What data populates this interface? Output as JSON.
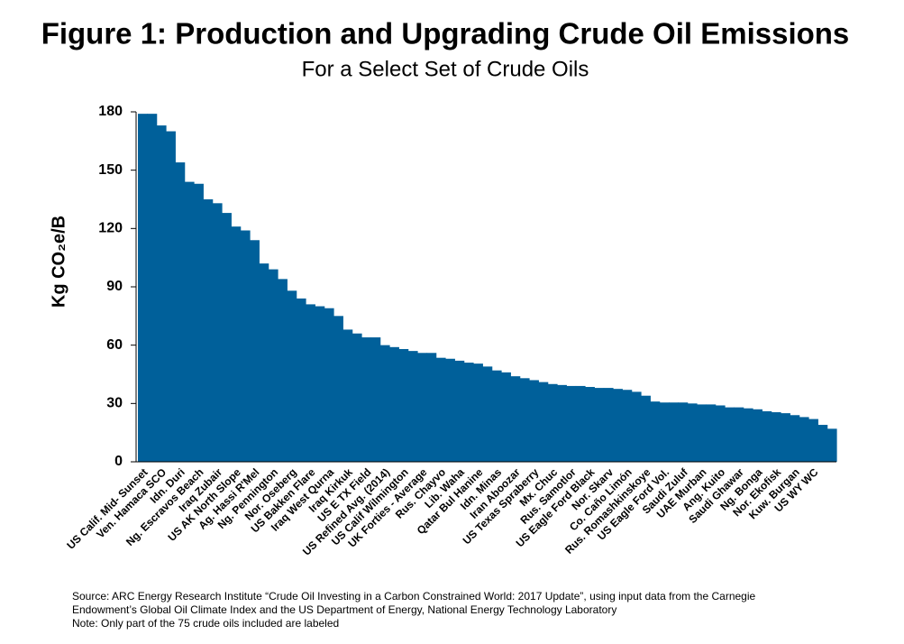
{
  "chart_data": {
    "type": "bar",
    "title": "Figure 1: Production and Upgrading Crude Oil Emissions",
    "subtitle": "For a Select Set of Crude Oils",
    "y_label": "Kg CO₂e/B",
    "color": "#00609a",
    "ylim": [
      0,
      180
    ],
    "yticks": [
      0,
      30,
      60,
      90,
      120,
      150,
      180
    ],
    "categories": [
      "US Calif. Mid- Sunset",
      null,
      "Ven. Hamaca SCO",
      null,
      "Idn. Duri",
      null,
      "Ng. Escravos Beach",
      null,
      "Iraq Zubair",
      null,
      "US AK North Slope",
      null,
      "Ag. Hassi R'Mel",
      null,
      "Ng. Pennington",
      null,
      "Nor. Oseberg",
      null,
      "US Bakken Flare",
      null,
      "Iraq West Qurna",
      null,
      "Iraq Kirkuk",
      null,
      "US E TX Field",
      null,
      "US Refined Avg. (2014)",
      null,
      "US Calif Wilmington",
      null,
      "UK Forties - Average",
      null,
      "Rus. Chayvo",
      null,
      "Lib. Waha",
      null,
      "Qatar Bul Hanine",
      null,
      "Idn. Minas",
      null,
      "Iran Aboozar",
      null,
      "US Texas Spraberry",
      null,
      "Mx. Chuc",
      null,
      "Rus. Samotlor",
      null,
      "US Eagle Ford Black",
      null,
      "Nor. Skarv",
      null,
      "Co. Caño Limón",
      null,
      "Rus. Romashkinskoye",
      null,
      "US Eagle Ford Vol.",
      null,
      "Saudi Zuluf",
      null,
      "UAE Murban",
      null,
      "Ang. Kuito",
      null,
      "Saudi Ghawar",
      null,
      "Ng. Bonga",
      null,
      "Nor. Ekofisk",
      null,
      "Kuw. Burgan",
      null,
      "US WY WC",
      null,
      null
    ],
    "values": [
      179,
      179,
      173,
      170,
      154,
      144,
      143,
      135,
      133,
      128,
      121,
      119,
      114,
      102,
      99,
      94,
      88,
      84,
      81,
      80,
      79,
      75,
      68,
      66,
      64,
      64,
      60,
      59,
      58,
      57,
      56,
      56,
      53.5,
      53,
      52,
      51,
      50.5,
      49,
      47,
      46,
      44,
      43,
      42,
      41,
      40,
      39.5,
      39,
      39,
      38.5,
      38,
      38,
      37.5,
      37,
      36,
      34,
      31,
      30.5,
      30.5,
      30.5,
      30,
      29.5,
      29.5,
      29,
      28,
      28,
      27.5,
      27,
      26,
      25.5,
      25,
      24,
      23,
      22,
      19,
      17
    ],
    "source": [
      "Source: ARC Energy Research Institute “Crude Oil Investing in a Carbon Constrained World: 2017 Update”, using input data from the Carnegie",
      "Endowment’s Global Oil Climate Index and the US Department of Energy, National Energy Technology Laboratory",
      "Note: Only part of the 75 crude oils included are labeled"
    ]
  }
}
